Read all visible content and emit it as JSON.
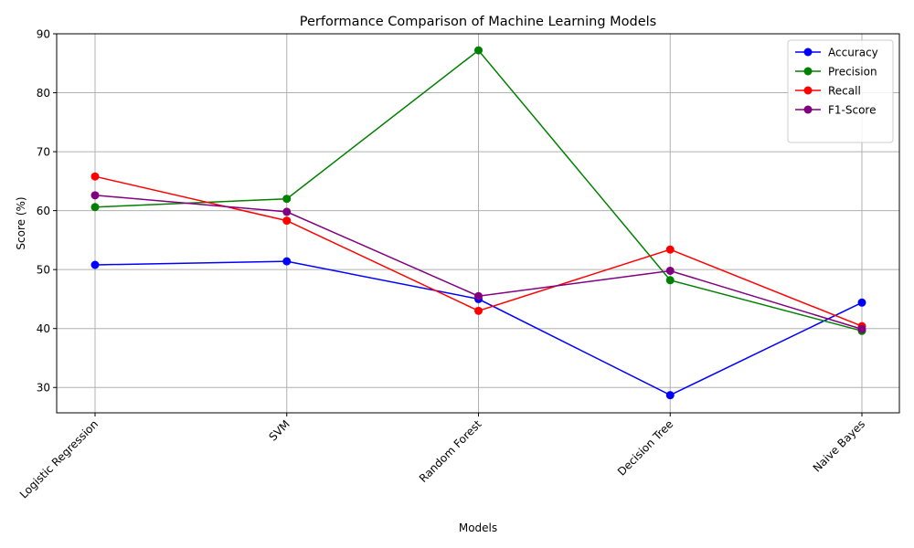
{
  "chart_data": {
    "type": "line",
    "title": "Performance Comparison of Machine Learning Models",
    "xlabel": "Models",
    "ylabel": "Score (%)",
    "categories": [
      "Logistic Regression",
      "SVM",
      "Random Forest",
      "Decision Tree",
      "Naive Bayes"
    ],
    "ylim": [
      25.7,
      90
    ],
    "yticks": [
      30,
      40,
      50,
      60,
      70,
      80,
      90
    ],
    "grid": true,
    "legend_position": "top-right",
    "series": [
      {
        "name": "Accuracy",
        "color": "#0000ff",
        "values": [
          50.8,
          51.4,
          45.0,
          28.7,
          44.4
        ]
      },
      {
        "name": "Precision",
        "color": "#008000",
        "values": [
          60.6,
          62.0,
          87.2,
          48.2,
          39.6
        ]
      },
      {
        "name": "Recall",
        "color": "#ff0000",
        "values": [
          65.8,
          58.3,
          43.0,
          53.4,
          40.4
        ]
      },
      {
        "name": "F1-Score",
        "color": "#800080",
        "values": [
          62.6,
          59.8,
          45.5,
          49.8,
          39.9
        ]
      }
    ]
  }
}
